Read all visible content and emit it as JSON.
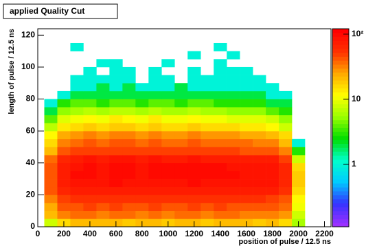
{
  "chart_data": {
    "type": "heatmap",
    "title": "applied Quality Cut",
    "x_label": "position of pulse / 12.5 ns",
    "y_label": "length of pulse / 12.5 ns",
    "x_bins": [
      50,
      150,
      250,
      350,
      450,
      550,
      650,
      750,
      850,
      950,
      1050,
      1150,
      1250,
      1350,
      1450,
      1550,
      1650,
      1750,
      1850,
      1950,
      2050
    ],
    "y_bins": [
      0,
      5,
      10,
      15,
      20,
      25,
      30,
      35,
      40,
      45,
      50,
      55,
      60,
      65,
      70,
      75,
      80,
      85,
      90,
      95,
      100,
      105,
      110,
      115,
      120
    ],
    "z": [
      [
        8,
        15,
        20,
        22,
        20,
        21,
        19,
        22,
        20,
        18,
        21,
        20,
        19,
        22,
        20,
        21,
        18,
        20,
        15,
        6
      ],
      [
        20,
        30,
        35,
        36,
        34,
        37,
        35,
        33,
        36,
        34,
        35,
        37,
        34,
        36,
        35,
        33,
        34,
        32,
        28,
        8
      ],
      [
        25,
        40,
        45,
        46,
        44,
        47,
        45,
        43,
        46,
        44,
        45,
        47,
        44,
        46,
        45,
        43,
        44,
        42,
        35,
        10
      ],
      [
        30,
        48,
        55,
        56,
        54,
        57,
        55,
        53,
        56,
        54,
        55,
        57,
        54,
        56,
        55,
        53,
        54,
        50,
        42,
        12
      ],
      [
        40,
        65,
        75,
        76,
        74,
        78,
        76,
        73,
        77,
        75,
        74,
        78,
        75,
        76,
        74,
        72,
        73,
        70,
        55,
        15
      ],
      [
        45,
        75,
        88,
        90,
        87,
        92,
        90,
        86,
        91,
        89,
        88,
        93,
        90,
        89,
        87,
        85,
        86,
        82,
        65,
        18
      ],
      [
        45,
        78,
        92,
        95,
        90,
        96,
        95,
        90,
        97,
        94,
        93,
        98,
        95,
        94,
        92,
        90,
        90,
        85,
        68,
        18
      ],
      [
        42,
        75,
        90,
        94,
        90,
        95,
        93,
        89,
        95,
        93,
        92,
        96,
        93,
        92,
        90,
        88,
        88,
        82,
        65,
        15
      ],
      [
        35,
        65,
        78,
        80,
        77,
        82,
        80,
        76,
        81,
        79,
        78,
        82,
        79,
        78,
        76,
        75,
        74,
        70,
        52,
        8
      ],
      [
        22,
        40,
        48,
        50,
        47,
        52,
        50,
        46,
        51,
        49,
        48,
        52,
        49,
        48,
        46,
        45,
        44,
        40,
        30,
        3
      ],
      [
        16,
        32,
        38,
        40,
        37,
        42,
        40,
        36,
        41,
        39,
        38,
        42,
        39,
        38,
        36,
        35,
        34,
        30,
        22,
        1
      ],
      [
        12,
        24,
        28,
        30,
        27,
        31,
        30,
        26,
        31,
        29,
        28,
        31,
        29,
        28,
        26,
        25,
        24,
        22,
        15,
        0
      ],
      [
        7,
        14,
        17,
        18,
        16,
        19,
        18,
        15,
        19,
        17,
        16,
        19,
        17,
        16,
        15,
        14,
        14,
        12,
        8,
        0
      ],
      [
        4,
        9,
        11,
        12,
        10,
        13,
        12,
        10,
        13,
        11,
        10,
        12,
        11,
        10,
        9,
        9,
        9,
        8,
        5,
        0
      ],
      [
        2,
        5,
        6,
        7,
        6,
        7,
        7,
        6,
        7,
        6,
        6,
        7,
        6,
        6,
        5,
        5,
        5,
        4,
        3,
        0
      ],
      [
        1,
        3,
        4,
        4,
        3,
        4,
        4,
        3,
        4,
        4,
        3,
        4,
        4,
        3,
        3,
        3,
        3,
        2,
        2,
        0
      ],
      [
        0,
        1,
        2,
        2,
        2,
        2,
        2,
        2,
        2,
        2,
        2,
        2,
        2,
        2,
        2,
        2,
        2,
        1,
        1,
        0
      ],
      [
        0,
        0,
        1,
        1,
        2,
        1,
        2,
        1,
        1,
        1,
        2,
        1,
        1,
        1,
        1,
        1,
        1,
        1,
        0,
        0
      ],
      [
        0,
        0,
        1,
        1,
        1,
        1,
        1,
        0,
        1,
        1,
        0,
        1,
        1,
        1,
        1,
        1,
        1,
        0,
        0,
        0
      ],
      [
        0,
        0,
        0,
        1,
        0,
        1,
        1,
        0,
        1,
        0,
        0,
        1,
        0,
        1,
        1,
        1,
        0,
        0,
        0,
        0
      ],
      [
        0,
        0,
        0,
        0,
        1,
        1,
        0,
        0,
        0,
        1,
        0,
        0,
        0,
        1,
        0,
        0,
        0,
        0,
        0,
        0
      ],
      [
        0,
        0,
        0,
        0,
        0,
        0,
        0,
        0,
        0,
        0,
        0,
        1,
        0,
        0,
        1,
        0,
        0,
        0,
        0,
        0
      ],
      [
        0,
        0,
        1,
        0,
        0,
        0,
        0,
        0,
        0,
        0,
        0,
        0,
        0,
        1,
        0,
        0,
        0,
        0,
        0,
        0
      ],
      [
        0,
        0,
        0,
        0,
        0,
        0,
        0,
        0,
        0,
        0,
        0,
        0,
        0,
        0,
        0,
        0,
        0,
        0,
        0,
        0
      ]
    ],
    "xlim": [
      0,
      2250
    ],
    "ylim": [
      0,
      124
    ],
    "xticks": [
      0,
      200,
      400,
      600,
      800,
      1000,
      1200,
      1400,
      1600,
      1800,
      2000,
      2200
    ],
    "yticks": [
      0,
      20,
      40,
      60,
      80,
      100,
      120
    ],
    "zlim": [
      0.11,
      121
    ],
    "zticks": [
      1,
      10,
      {
        "value": 100,
        "label": "10²"
      }
    ],
    "zscale": "log",
    "palette": [
      "#9b30ff",
      "#3333ff",
      "#00ccff",
      "#00ffcc",
      "#00dd00",
      "#99ff00",
      "#ffff00",
      "#ffaa00",
      "#ff3300",
      "#ff0000"
    ]
  }
}
